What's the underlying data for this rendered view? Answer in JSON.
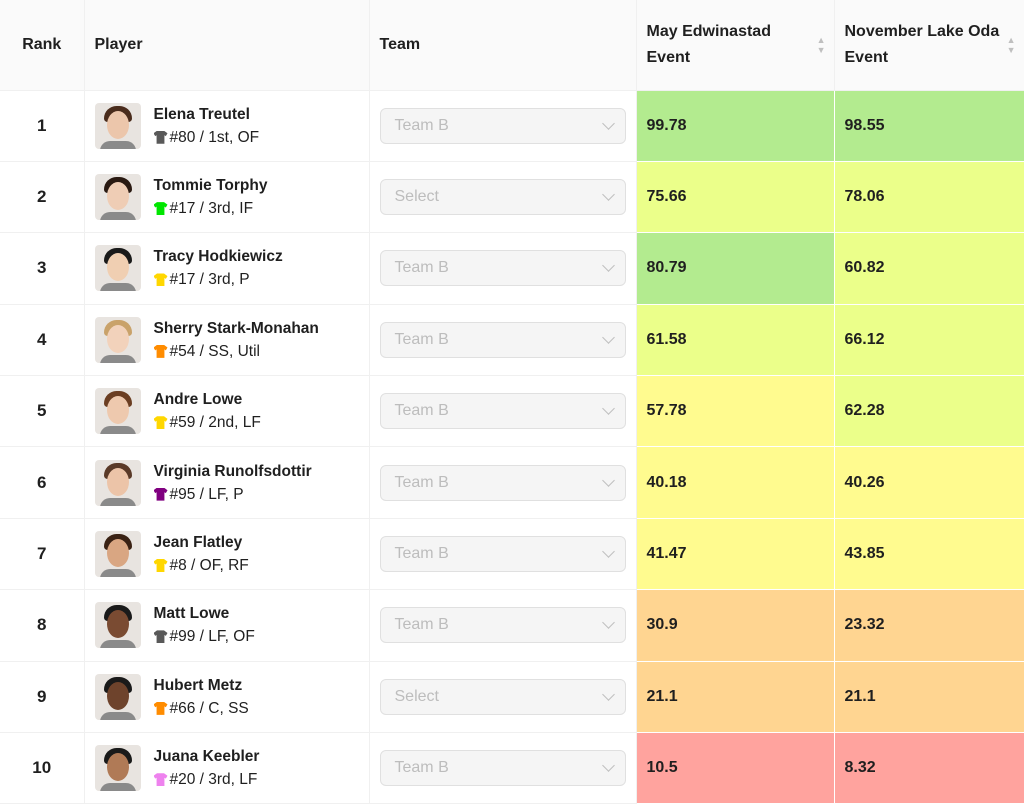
{
  "columns": {
    "rank": "Rank",
    "player": "Player",
    "team": "Team",
    "event1": [
      "May Edwinastad",
      "Event"
    ],
    "event2": [
      "November Lake Oda",
      "Event"
    ]
  },
  "score_colors": {
    "high": "#b3eb8f",
    "good": "#ebff8a",
    "mid": "#fffb8f",
    "low": "#ffd591",
    "poor": "#ffa39e"
  },
  "rows": [
    {
      "rank": "1",
      "name": "Elena Treutel",
      "info": "#80 / 1st, OF",
      "jersey": "#595959",
      "team": "Team B",
      "e1": "99.78",
      "e2": "98.55"
    },
    {
      "rank": "2",
      "name": "Tommie Torphy",
      "info": "#17 / 3rd, IF",
      "jersey": "#00e600",
      "team": "Select",
      "e1": "75.66",
      "e2": "78.06"
    },
    {
      "rank": "3",
      "name": "Tracy Hodkiewicz",
      "info": "#17 / 3rd, P",
      "jersey": "#ffd700",
      "team": "Team B",
      "e1": "80.79",
      "e2": "60.82"
    },
    {
      "rank": "4",
      "name": "Sherry Stark-Monahan",
      "info": "#54 / SS, Util",
      "jersey": "#ff8c00",
      "team": "Team B",
      "e1": "61.58",
      "e2": "66.12"
    },
    {
      "rank": "5",
      "name": "Andre Lowe",
      "info": "#59 / 2nd, LF",
      "jersey": "#ffd700",
      "team": "Team B",
      "e1": "57.78",
      "e2": "62.28"
    },
    {
      "rank": "6",
      "name": "Virginia Runolfsdottir",
      "info": "#95 / LF, P",
      "jersey": "#800080",
      "team": "Team B",
      "e1": "40.18",
      "e2": "40.26"
    },
    {
      "rank": "7",
      "name": "Jean Flatley",
      "info": "#8 / OF, RF",
      "jersey": "#ffd700",
      "team": "Team B",
      "e1": "41.47",
      "e2": "43.85"
    },
    {
      "rank": "8",
      "name": "Matt Lowe",
      "info": "#99 / LF, OF",
      "jersey": "#595959",
      "team": "Team B",
      "e1": "30.9",
      "e2": "23.32"
    },
    {
      "rank": "9",
      "name": "Hubert Metz",
      "info": "#66 / C, SS",
      "jersey": "#ff8c00",
      "team": "Select",
      "e1": "21.1",
      "e2": "21.1"
    },
    {
      "rank": "10",
      "name": "Juana Keebler",
      "info": "#20 / 3rd, LF",
      "jersey": "#ee82ee",
      "team": "Team B",
      "e1": "10.5",
      "e2": "8.32"
    }
  ]
}
